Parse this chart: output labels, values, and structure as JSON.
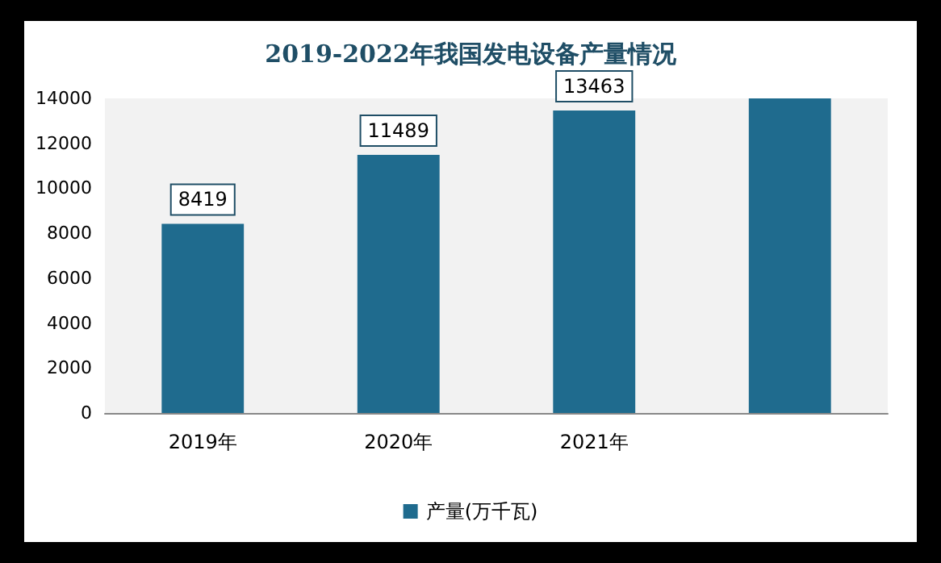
{
  "chart_data": {
    "type": "bar",
    "title": "2019-2022年我国发电设备产量情况",
    "categories": [
      "2019年",
      "2020年",
      "2021年",
      null
    ],
    "series": [
      {
        "name": "产量(万千瓦)",
        "color": "#1f6b8e",
        "values": [
          8419,
          11489,
          13463,
          14000
        ],
        "value_labels": [
          "8419",
          "11489",
          "13463",
          null
        ]
      }
    ],
    "ylim": [
      0,
      14000
    ],
    "yticks": [
      0,
      2000,
      4000,
      6000,
      8000,
      10000,
      12000,
      14000
    ],
    "grid": false,
    "legend": "bottom"
  }
}
